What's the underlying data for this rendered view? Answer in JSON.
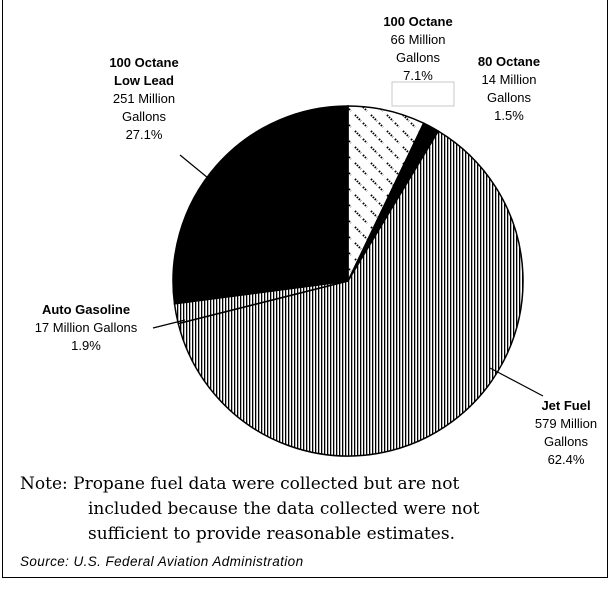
{
  "chart_data": {
    "type": "pie",
    "slices": [
      {
        "label_lines": [
          "100 Octane"
        ],
        "detail_lines": [
          "66 Million",
          "Gallons",
          "7.1%"
        ],
        "value": 66,
        "percent": 7.1,
        "pattern": "diamond"
      },
      {
        "label_lines": [
          "80 Octane"
        ],
        "detail_lines": [
          "14 Million",
          "Gallons",
          "1.5%"
        ],
        "value": 14,
        "percent": 1.5,
        "pattern": "solid-black"
      },
      {
        "label_lines": [
          "Jet Fuel"
        ],
        "detail_lines": [
          "579 Million",
          "Gallons",
          "62.4%"
        ],
        "value": 579,
        "percent": 62.4,
        "pattern": "vertical-lines"
      },
      {
        "label_lines": [
          "Auto Gasoline"
        ],
        "detail_lines": [
          "17 Million Gallons",
          "1.9%"
        ],
        "value": 17,
        "percent": 1.9,
        "pattern": "vertical-lines"
      },
      {
        "label_lines": [
          "100 Octane",
          "Low Lead"
        ],
        "detail_lines": [
          "251 Million",
          "Gallons",
          "27.1%"
        ],
        "value": 251,
        "percent": 27.1,
        "pattern": "solid-black"
      }
    ],
    "units": "Million Gallons"
  },
  "note": {
    "lines": [
      "Note:  Propane fuel data were collected but are not",
      "included because the data collected were not",
      "sufficient to provide reasonable estimates."
    ]
  },
  "source": "Source:   U.S. Federal Aviation Administration"
}
